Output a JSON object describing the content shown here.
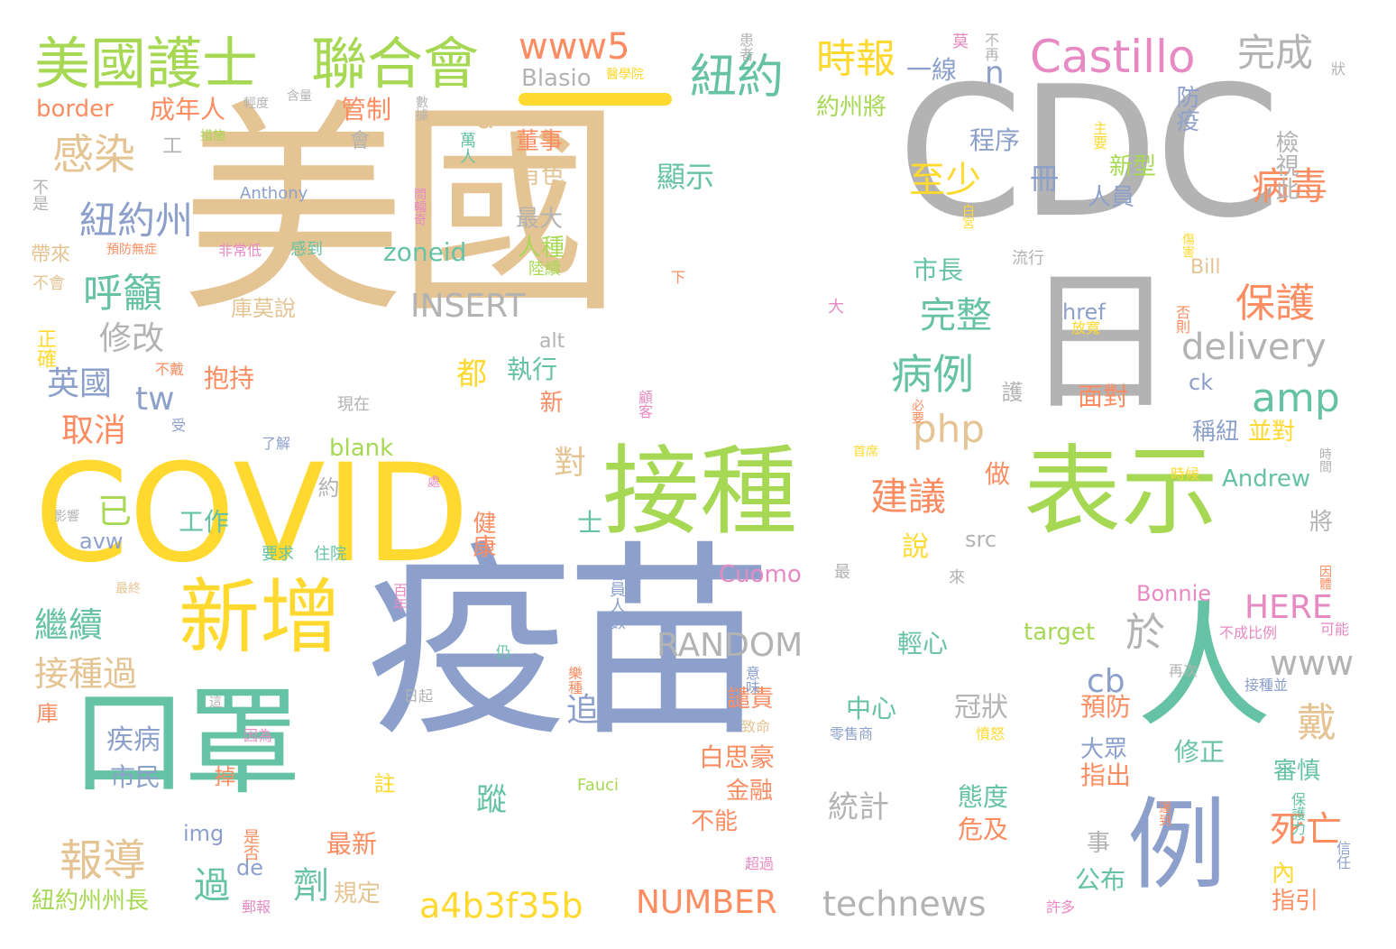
{
  "palette": {
    "tan": "#e5c494",
    "gray": "#b3b3b3",
    "yellow": "#ffd92f",
    "green": "#a6d854",
    "teal": "#66c2a5",
    "blue": "#8da0cb",
    "orange": "#fc8d62",
    "pink": "#e78ac3"
  },
  "words": [
    {
      "text": "美國",
      "color": "tan",
      "size": 250
    },
    {
      "text": "CDC",
      "color": "gray",
      "size": 200
    },
    {
      "text": "疫苗",
      "color": "blue",
      "size": 230
    },
    {
      "text": "COVID",
      "color": "yellow",
      "size": 150
    },
    {
      "text": "接種",
      "color": "green",
      "size": 108
    },
    {
      "text": "表示",
      "color": "green",
      "size": 108
    },
    {
      "text": "口罩",
      "color": "teal",
      "size": 130
    },
    {
      "text": "新增",
      "color": "yellow",
      "size": 90
    },
    {
      "text": "人",
      "color": "teal",
      "size": 150
    },
    {
      "text": "例",
      "color": "blue",
      "size": 110
    },
    {
      "text": "日",
      "color": "gray",
      "size": 170
    },
    {
      "text": "美國護士",
      "color": "green",
      "size": 62
    },
    {
      "text": "聯合會",
      "color": "green",
      "size": 62
    },
    {
      "text": "Castillo",
      "color": "pink",
      "size": 50
    },
    {
      "text": "紐約",
      "color": "teal",
      "size": 52
    },
    {
      "text": "時報",
      "color": "yellow",
      "size": 44
    },
    {
      "text": "完成",
      "color": "gray",
      "size": 42
    },
    {
      "text": "www5",
      "color": "orange",
      "size": 40
    },
    {
      "text": "感染",
      "color": "tan",
      "size": 46
    },
    {
      "text": "紐約州",
      "color": "blue",
      "size": 42
    },
    {
      "text": "呼籲",
      "color": "teal",
      "size": 44
    },
    {
      "text": "病毒",
      "color": "orange",
      "size": 42
    },
    {
      "text": "至少",
      "color": "yellow",
      "size": 40
    },
    {
      "text": "保護",
      "color": "orange",
      "size": 44
    },
    {
      "text": "amp",
      "color": "teal",
      "size": 44
    },
    {
      "text": "delivery",
      "color": "gray",
      "size": 40
    },
    {
      "text": "病例",
      "color": "teal",
      "size": 46
    },
    {
      "text": "英國",
      "color": "blue",
      "size": 36
    },
    {
      "text": "修改",
      "color": "gray",
      "size": 36
    },
    {
      "text": "取消",
      "color": "orange",
      "size": 36
    },
    {
      "text": "tw",
      "color": "blue",
      "size": 36
    },
    {
      "text": "建議",
      "color": "orange",
      "size": 42
    },
    {
      "text": "完整",
      "color": "teal",
      "size": 40
    },
    {
      "text": "php",
      "color": "tan",
      "size": 42
    },
    {
      "text": "INSERT",
      "color": "gray",
      "size": 36
    },
    {
      "text": "RANDOM",
      "color": "gray",
      "size": 36
    },
    {
      "text": "於",
      "color": "gray",
      "size": 44
    },
    {
      "text": "www",
      "color": "gray",
      "size": 38
    },
    {
      "text": "HERE",
      "color": "pink",
      "size": 36
    },
    {
      "text": "cb",
      "color": "blue",
      "size": 36
    },
    {
      "text": "戴",
      "color": "tan",
      "size": 44
    },
    {
      "text": "死亡",
      "color": "orange",
      "size": 40
    },
    {
      "text": "報導",
      "color": "tan",
      "size": 48
    },
    {
      "text": "繼續",
      "color": "teal",
      "size": 38
    },
    {
      "text": "接種過",
      "color": "tan",
      "size": 38
    },
    {
      "text": "過",
      "color": "teal",
      "size": 40
    },
    {
      "text": "劑",
      "color": "teal",
      "size": 40
    },
    {
      "text": "a4b3f35b",
      "color": "yellow",
      "size": 38
    },
    {
      "text": "NUMBER",
      "color": "orange",
      "size": 36
    },
    {
      "text": "technews",
      "color": "gray",
      "size": 38
    },
    {
      "text": "已",
      "color": "green",
      "size": 38
    },
    {
      "text": "Blasio",
      "color": "gray",
      "size": 26
    },
    {
      "text": "n",
      "color": "blue",
      "size": 34
    },
    {
      "text": "a",
      "color": "tan",
      "size": 34
    },
    {
      "text": "一線",
      "color": "blue",
      "size": 28
    },
    {
      "text": "紐約州州長",
      "color": "green",
      "size": 26
    },
    {
      "text": "顯示",
      "color": "teal",
      "size": 32
    },
    {
      "text": "追",
      "color": "blue",
      "size": 36
    },
    {
      "text": "蹤",
      "color": "teal",
      "size": 34
    },
    {
      "text": "統計",
      "color": "gray",
      "size": 34
    },
    {
      "text": "冠狀",
      "color": "gray",
      "size": 30
    },
    {
      "text": "態度",
      "color": "teal",
      "size": 28
    },
    {
      "text": "危及",
      "color": "orange",
      "size": 28
    },
    {
      "text": "中心",
      "color": "teal",
      "size": 28
    },
    {
      "text": "輕心",
      "color": "teal",
      "size": 28
    },
    {
      "text": "zoneid",
      "color": "teal",
      "size": 28
    },
    {
      "text": "blank",
      "color": "green",
      "size": 26
    },
    {
      "text": "target",
      "color": "green",
      "size": 26
    },
    {
      "text": "Andrew",
      "color": "teal",
      "size": 26
    },
    {
      "text": "Cuomo",
      "color": "pink",
      "size": 26
    },
    {
      "text": "Bonnie",
      "color": "pink",
      "size": 24
    },
    {
      "text": "border",
      "color": "orange",
      "size": 26
    },
    {
      "text": "src",
      "color": "gray",
      "size": 24
    },
    {
      "text": "href",
      "color": "blue",
      "size": 24
    },
    {
      "text": "alt",
      "color": "gray",
      "size": 22
    },
    {
      "text": "ck",
      "color": "blue",
      "size": 24
    },
    {
      "text": "img",
      "color": "blue",
      "size": 24
    },
    {
      "text": "avw",
      "color": "blue",
      "size": 24
    },
    {
      "text": "de",
      "color": "blue",
      "size": 24
    },
    {
      "text": "Bill",
      "color": "tan",
      "size": 22
    },
    {
      "text": "Anthony",
      "color": "blue",
      "size": 18
    },
    {
      "text": "Fauci",
      "color": "green",
      "size": 18
    },
    {
      "text": "成年人",
      "color": "orange",
      "size": 28
    },
    {
      "text": "管制",
      "color": "orange",
      "size": 28
    },
    {
      "text": "董事",
      "color": "orange",
      "size": 26
    },
    {
      "text": "約州將",
      "color": "green",
      "size": 26
    },
    {
      "text": "防疫",
      "color": "blue",
      "size": 26
    },
    {
      "text": "程序",
      "color": "blue",
      "size": 28
    },
    {
      "text": "新型",
      "color": "green",
      "size": 26
    },
    {
      "text": "人員",
      "color": "blue",
      "size": 26
    },
    {
      "text": "檢視此",
      "color": "gray",
      "size": 26
    },
    {
      "text": "冊",
      "color": "blue",
      "size": 32
    },
    {
      "text": "有色",
      "color": "tan",
      "size": 26
    },
    {
      "text": "最大",
      "color": "gray",
      "size": 26
    },
    {
      "text": "人種",
      "color": "green",
      "size": 26
    },
    {
      "text": "市長",
      "color": "teal",
      "size": 28
    },
    {
      "text": "工作",
      "color": "teal",
      "size": 28
    },
    {
      "text": "抱持",
      "color": "orange",
      "size": 28
    },
    {
      "text": "執行",
      "color": "teal",
      "size": 28
    },
    {
      "text": "都",
      "color": "yellow",
      "size": 34
    },
    {
      "text": "面對",
      "color": "orange",
      "size": 28
    },
    {
      "text": "稱紐",
      "color": "blue",
      "size": 26
    },
    {
      "text": "並對",
      "color": "yellow",
      "size": 26
    },
    {
      "text": "說",
      "color": "yellow",
      "size": 30
    },
    {
      "text": "做",
      "color": "orange",
      "size": 28
    },
    {
      "text": "約",
      "color": "gray",
      "size": 24
    },
    {
      "text": "健康",
      "color": "orange",
      "size": 26
    },
    {
      "text": "疾病",
      "color": "blue",
      "size": 30
    },
    {
      "text": "市民",
      "color": "blue",
      "size": 28
    },
    {
      "text": "白思豪",
      "color": "orange",
      "size": 28
    },
    {
      "text": "金融",
      "color": "orange",
      "size": 26
    },
    {
      "text": "譴責",
      "color": "orange",
      "size": 26
    },
    {
      "text": "不能",
      "color": "orange",
      "size": 26
    },
    {
      "text": "預防",
      "color": "orange",
      "size": 28
    },
    {
      "text": "大眾",
      "color": "blue",
      "size": 26
    },
    {
      "text": "指出",
      "color": "orange",
      "size": 28
    },
    {
      "text": "修正",
      "color": "teal",
      "size": 28
    },
    {
      "text": "審慎",
      "color": "teal",
      "size": 26
    },
    {
      "text": "最新",
      "color": "orange",
      "size": 28
    },
    {
      "text": "規定",
      "color": "tan",
      "size": 26
    },
    {
      "text": "公布",
      "color": "teal",
      "size": 28
    },
    {
      "text": "指引",
      "color": "orange",
      "size": 26
    },
    {
      "text": "內",
      "color": "yellow",
      "size": 26
    },
    {
      "text": "事",
      "color": "gray",
      "size": 26
    },
    {
      "text": "庫莫說",
      "color": "tan",
      "size": 24
    },
    {
      "text": "對",
      "color": "tan",
      "size": 36
    },
    {
      "text": "士",
      "color": "teal",
      "size": 28
    },
    {
      "text": "將",
      "color": "gray",
      "size": 26
    },
    {
      "text": "護",
      "color": "gray",
      "size": 24
    },
    {
      "text": "新",
      "color": "orange",
      "size": 26
    },
    {
      "text": "工",
      "color": "gray",
      "size": 22
    },
    {
      "text": "會",
      "color": "gray",
      "size": 22
    },
    {
      "text": "掉",
      "color": "orange",
      "size": 24
    },
    {
      "text": "註",
      "color": "yellow",
      "size": 24
    },
    {
      "text": "庫",
      "color": "orange",
      "size": 24
    },
    {
      "text": "正確",
      "color": "yellow",
      "size": 22
    },
    {
      "text": "帶來",
      "color": "tan",
      "size": 22
    },
    {
      "text": "不會",
      "color": "tan",
      "size": 18
    },
    {
      "text": "不是",
      "color": "gray",
      "size": 18
    },
    {
      "text": "萬人",
      "color": "teal",
      "size": 18
    },
    {
      "text": "陸續",
      "color": "green",
      "size": 18
    },
    {
      "text": "感到",
      "color": "teal",
      "size": 18
    },
    {
      "text": "非常低",
      "color": "pink",
      "size": 16
    },
    {
      "text": "預防無症",
      "color": "orange",
      "size": 14
    },
    {
      "text": "現在",
      "color": "gray",
      "size": 18
    },
    {
      "text": "了解",
      "color": "blue",
      "size": 16
    },
    {
      "text": "受",
      "color": "blue",
      "size": 16
    },
    {
      "text": "不戴",
      "color": "orange",
      "size": 16
    },
    {
      "text": "影響",
      "color": "gray",
      "size": 14
    },
    {
      "text": "最終",
      "color": "tan",
      "size": 14
    },
    {
      "text": "要求",
      "color": "teal",
      "size": 18
    },
    {
      "text": "住院",
      "color": "teal",
      "size": 18
    },
    {
      "text": "百年",
      "color": "pink",
      "size": 16
    },
    {
      "text": "是否",
      "color": "orange",
      "size": 18
    },
    {
      "text": "郵報",
      "color": "pink",
      "size": 16
    },
    {
      "text": "會員人數",
      "color": "blue",
      "size": 18
    },
    {
      "text": "最",
      "color": "gray",
      "size": 18
    },
    {
      "text": "來",
      "color": "gray",
      "size": 18
    },
    {
      "text": "處",
      "color": "pink",
      "size": 14
    },
    {
      "text": "首席",
      "color": "yellow",
      "size": 14
    },
    {
      "text": "必要",
      "color": "orange",
      "size": 14
    },
    {
      "text": "顧客",
      "color": "pink",
      "size": 16
    },
    {
      "text": "大",
      "color": "pink",
      "size": 18
    },
    {
      "text": "下",
      "color": "orange",
      "size": 16
    },
    {
      "text": "仍",
      "color": "teal",
      "size": 16
    },
    {
      "text": "樂種",
      "color": "orange",
      "size": 16
    },
    {
      "text": "日起",
      "color": "gray",
      "size": 16
    },
    {
      "text": "這",
      "color": "gray",
      "size": 14
    },
    {
      "text": "因為",
      "color": "pink",
      "size": 16
    },
    {
      "text": "零售商",
      "color": "blue",
      "size": 16
    },
    {
      "text": "致命",
      "color": "tan",
      "size": 16
    },
    {
      "text": "意味",
      "color": "blue",
      "size": 16
    },
    {
      "text": "再次",
      "color": "gray",
      "size": 16
    },
    {
      "text": "憤怒",
      "color": "yellow",
      "size": 16
    },
    {
      "text": "超過",
      "color": "pink",
      "size": 16
    },
    {
      "text": "許多",
      "color": "pink",
      "size": 16
    },
    {
      "text": "運到",
      "color": "orange",
      "size": 14
    },
    {
      "text": "保護力",
      "color": "teal",
      "size": 16
    },
    {
      "text": "信任",
      "color": "blue",
      "size": 16
    },
    {
      "text": "接種並",
      "color": "blue",
      "size": 16
    },
    {
      "text": "不成比例",
      "color": "pink",
      "size": 16
    },
    {
      "text": "可能",
      "color": "pink",
      "size": 16
    },
    {
      "text": "因體",
      "color": "orange",
      "size": 14
    },
    {
      "text": "時間",
      "color": "gray",
      "size": 14
    },
    {
      "text": "時候",
      "color": "yellow",
      "size": 16
    },
    {
      "text": "否則",
      "color": "orange",
      "size": 16
    },
    {
      "text": "放寬",
      "color": "yellow",
      "size": 16
    },
    {
      "text": "傷害",
      "color": "yellow",
      "size": 14
    },
    {
      "text": "流行",
      "color": "gray",
      "size": 18
    },
    {
      "text": "白宮",
      "color": "yellow",
      "size": 14
    },
    {
      "text": "主要",
      "color": "yellow",
      "size": 16
    },
    {
      "text": "狀",
      "color": "gray",
      "size": 16
    },
    {
      "text": "不再",
      "color": "gray",
      "size": 16
    },
    {
      "text": "患者",
      "color": "gray",
      "size": 16
    },
    {
      "text": "莫",
      "color": "pink",
      "size": 18
    },
    {
      "text": "醫學院",
      "color": "yellow",
      "size": 14
    },
    {
      "text": "輕度",
      "color": "gray",
      "size": 14
    },
    {
      "text": "含量",
      "color": "gray",
      "size": 14
    },
    {
      "text": "數據",
      "color": "gray",
      "size": 14
    },
    {
      "text": "措施",
      "color": "green",
      "size": 14
    },
    {
      "text": "問輻奇",
      "color": "pink",
      "size": 14
    }
  ]
}
